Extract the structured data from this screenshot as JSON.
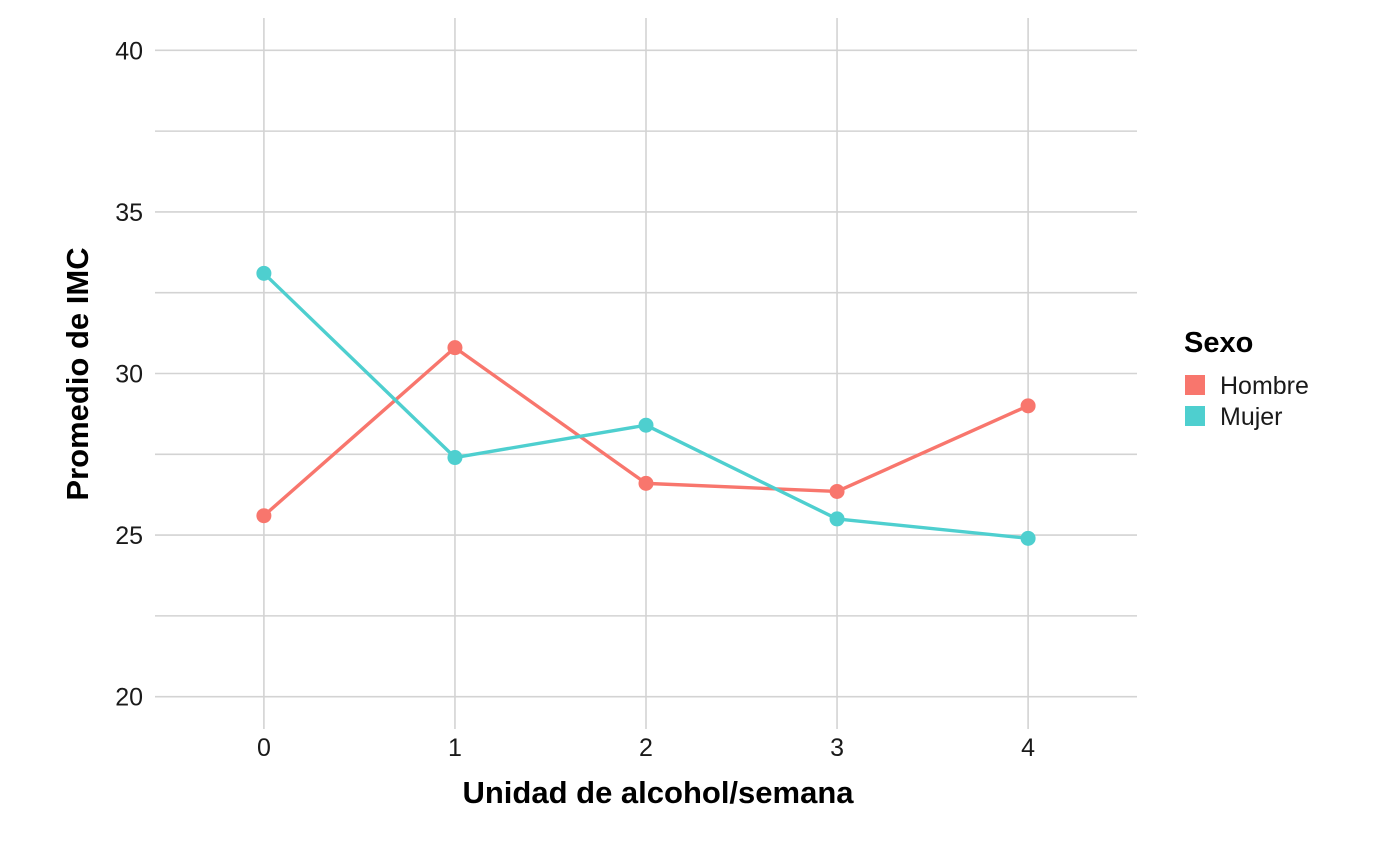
{
  "chart_data": {
    "type": "line",
    "xlabel": "Unidad de alcohol/semana",
    "ylabel": "Promedio de IMC",
    "x": [
      0,
      1,
      2,
      3,
      4
    ],
    "xticks": [
      "0",
      "1",
      "2",
      "3",
      "4"
    ],
    "xlim": [
      -0.57,
      4.57
    ],
    "yticks": [
      "20",
      "25",
      "30",
      "35",
      "40"
    ],
    "ylim": [
      19,
      41
    ],
    "grid": true,
    "legend": {
      "title": "Sexo",
      "placement": "right"
    },
    "series": [
      {
        "name": "Hombre",
        "color": "#F8766D",
        "values": [
          25.6,
          30.8,
          26.6,
          26.35,
          29.0
        ]
      },
      {
        "name": "Mujer",
        "color": "#4ECFCF",
        "values": [
          33.1,
          27.4,
          28.4,
          25.5,
          24.9
        ]
      }
    ]
  }
}
